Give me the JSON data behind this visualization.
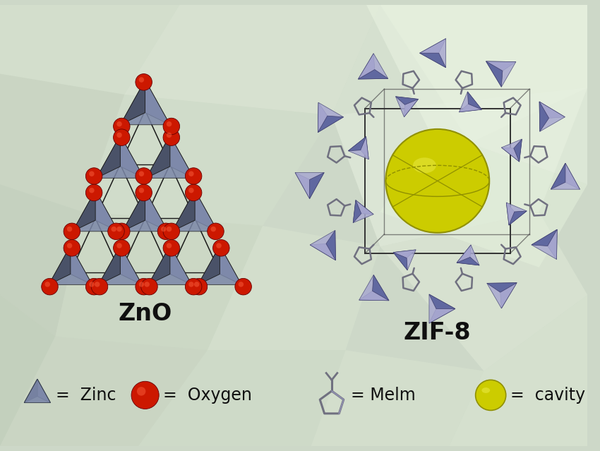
{
  "zno_label": "ZnO",
  "zif8_label": "ZIF-8",
  "legend_zinc": "=  Zinc",
  "legend_oxygen": "=  Oxygen",
  "legend_melm": "= Melm",
  "legend_cavity": "=  cavity",
  "zinc_color": "#7b87a8",
  "zinc_mid": "#9098b8",
  "zinc_dark": "#4a5268",
  "zinc_light": "#aab0cc",
  "oxygen_color": "#cc1800",
  "oxygen_mid": "#e03010",
  "cavity_color": "#cccc00",
  "cavity_light": "#e8e820",
  "zif_color": "#9090c0",
  "zif_dark": "#6068a0",
  "bond_color": "#1a1a1a",
  "melm_color": "#707080",
  "label_fontsize": 24,
  "legend_fontsize": 17,
  "bg_base": "#cdd8c8"
}
